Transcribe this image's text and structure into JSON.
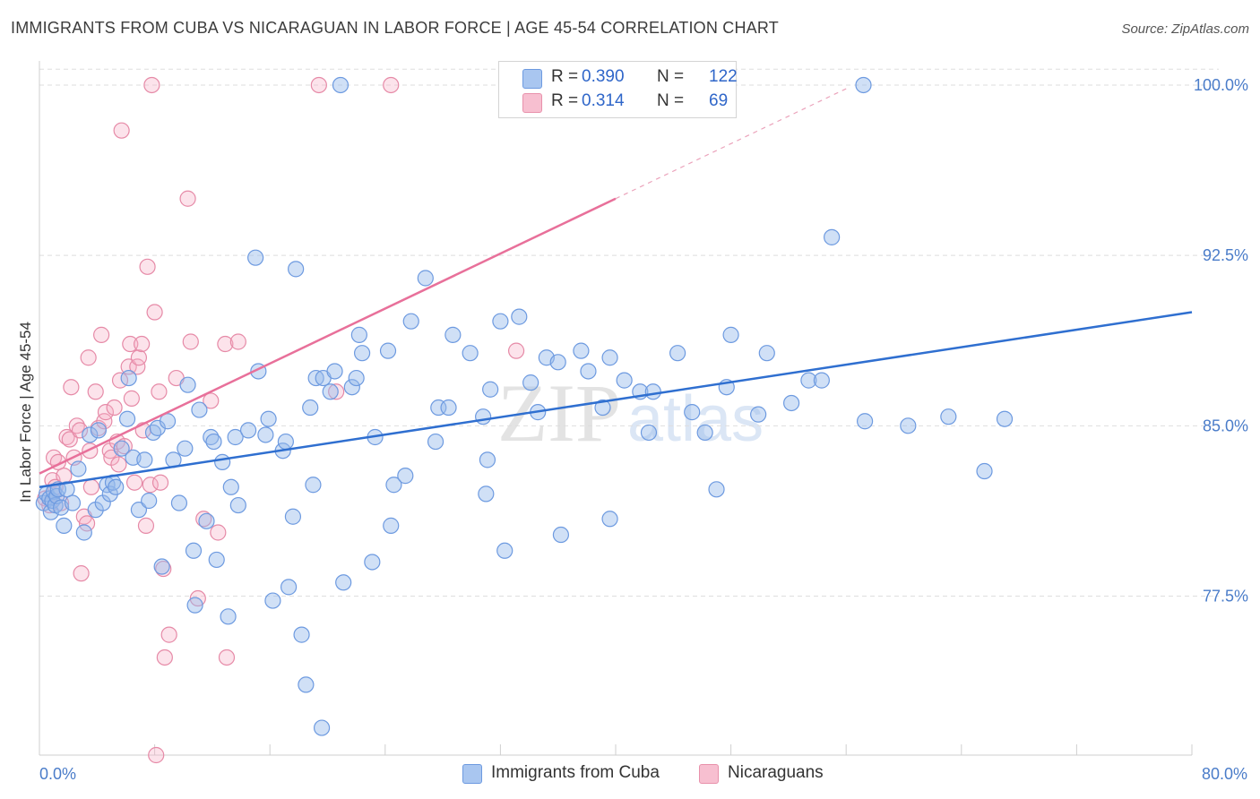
{
  "title": "IMMIGRANTS FROM CUBA VS NICARAGUAN IN LABOR FORCE | AGE 45-54 CORRELATION CHART",
  "source": "Source: ZipAtlas.com",
  "watermark": {
    "zip": "ZIP",
    "atlas": "atlas"
  },
  "legend": {
    "rows": [
      {
        "r_label": "R =",
        "r_value": "0.390",
        "n_label": "N =",
        "n_value": "122",
        "color": "#a9c6f0",
        "border": "#6d9ae0"
      },
      {
        "r_label": "R =",
        "r_value": "0.314",
        "n_label": "N =",
        "n_value": "69",
        "color": "#f7bfd0",
        "border": "#e891ab"
      }
    ]
  },
  "bottom_legend": [
    {
      "label": "Immigrants from Cuba",
      "color": "#a9c6f0",
      "border": "#6d9ae0"
    },
    {
      "label": "Nicaraguans",
      "color": "#f7bfd0",
      "border": "#e891ab"
    }
  ],
  "colors": {
    "blue_point_fill": "rgba(151,186,236,0.45)",
    "blue_point_stroke": "#6d9ae0",
    "pink_point_fill": "rgba(245,175,198,0.35)",
    "pink_point_stroke": "#e68aa7",
    "blue_line": "#2f6fd0",
    "pink_line": "#e8709a",
    "grid": "#dedede",
    "tick_label": "#4a7cc9"
  },
  "chart_data": {
    "type": "scatter",
    "title": "IMMIGRANTS FROM CUBA VS NICARAGUAN IN LABOR FORCE | AGE 45-54 CORRELATION CHART",
    "xlabel": "",
    "ylabel": "In Labor Force | Age 45-54",
    "xlim": [
      0,
      80
    ],
    "ylim": [
      70.5,
      101.3
    ],
    "x_tick_labels": [
      "0.0%",
      "80.0%"
    ],
    "y_ticks": [
      77.5,
      85.0,
      92.5,
      100.0
    ],
    "y_tick_labels": [
      "77.5%",
      "85.0%",
      "92.5%",
      "100.0%"
    ],
    "grid": "horizontal dashed",
    "legend_placement": "top-center",
    "series": [
      {
        "name": "Immigrants from Cuba",
        "trend": {
          "x": [
            0,
            80
          ],
          "y": [
            82.3,
            90.0
          ]
        },
        "points": [
          [
            0.3,
            81.6
          ],
          [
            0.5,
            82.0
          ],
          [
            0.7,
            81.8
          ],
          [
            0.8,
            81.2
          ],
          [
            0.9,
            81.7
          ],
          [
            1.0,
            82.1
          ],
          [
            1.1,
            81.5
          ],
          [
            1.2,
            81.9
          ],
          [
            1.3,
            82.2
          ],
          [
            1.5,
            81.4
          ],
          [
            1.7,
            80.6
          ],
          [
            1.9,
            82.2
          ],
          [
            2.3,
            81.6
          ],
          [
            2.7,
            83.1
          ],
          [
            3.1,
            80.3
          ],
          [
            3.5,
            84.6
          ],
          [
            3.9,
            81.3
          ],
          [
            4.1,
            84.8
          ],
          [
            4.4,
            81.6
          ],
          [
            4.7,
            82.4
          ],
          [
            4.9,
            82.0
          ],
          [
            5.1,
            82.5
          ],
          [
            5.3,
            82.3
          ],
          [
            5.7,
            84.0
          ],
          [
            6.1,
            85.3
          ],
          [
            6.2,
            87.1
          ],
          [
            6.5,
            83.6
          ],
          [
            6.9,
            81.3
          ],
          [
            7.3,
            83.5
          ],
          [
            7.6,
            81.7
          ],
          [
            7.9,
            84.7
          ],
          [
            8.2,
            84.9
          ],
          [
            8.5,
            78.8
          ],
          [
            8.9,
            85.2
          ],
          [
            9.3,
            83.5
          ],
          [
            9.7,
            81.6
          ],
          [
            10.1,
            84.0
          ],
          [
            10.3,
            86.8
          ],
          [
            10.7,
            79.5
          ],
          [
            10.8,
            77.1
          ],
          [
            11.1,
            85.7
          ],
          [
            11.6,
            80.8
          ],
          [
            11.9,
            84.5
          ],
          [
            12.1,
            84.3
          ],
          [
            12.3,
            79.1
          ],
          [
            12.7,
            83.4
          ],
          [
            13.1,
            76.6
          ],
          [
            13.3,
            82.3
          ],
          [
            13.6,
            84.5
          ],
          [
            13.8,
            81.5
          ],
          [
            14.5,
            84.8
          ],
          [
            15.0,
            92.4
          ],
          [
            15.2,
            87.4
          ],
          [
            15.7,
            84.6
          ],
          [
            15.9,
            85.3
          ],
          [
            16.2,
            77.3
          ],
          [
            16.9,
            83.9
          ],
          [
            17.1,
            84.3
          ],
          [
            17.3,
            77.9
          ],
          [
            17.6,
            81.0
          ],
          [
            17.8,
            91.9
          ],
          [
            18.2,
            75.8
          ],
          [
            18.5,
            73.6
          ],
          [
            18.8,
            85.8
          ],
          [
            19.0,
            82.4
          ],
          [
            19.2,
            87.1
          ],
          [
            19.6,
            71.7
          ],
          [
            19.7,
            87.1
          ],
          [
            20.2,
            86.5
          ],
          [
            20.5,
            87.4
          ],
          [
            20.9,
            100.0
          ],
          [
            21.1,
            78.1
          ],
          [
            21.7,
            86.7
          ],
          [
            22.0,
            87.1
          ],
          [
            22.2,
            89.0
          ],
          [
            22.4,
            88.2
          ],
          [
            23.1,
            79.0
          ],
          [
            23.3,
            84.5
          ],
          [
            24.2,
            88.3
          ],
          [
            24.4,
            80.6
          ],
          [
            24.6,
            82.4
          ],
          [
            25.4,
            82.8
          ],
          [
            25.8,
            89.6
          ],
          [
            26.8,
            91.5
          ],
          [
            27.5,
            84.3
          ],
          [
            27.7,
            85.8
          ],
          [
            28.4,
            85.8
          ],
          [
            28.7,
            89.0
          ],
          [
            29.9,
            88.2
          ],
          [
            30.8,
            85.4
          ],
          [
            31.0,
            82.0
          ],
          [
            31.1,
            83.5
          ],
          [
            31.3,
            86.6
          ],
          [
            32.0,
            89.6
          ],
          [
            32.3,
            79.5
          ],
          [
            33.3,
            89.8
          ],
          [
            34.1,
            86.9
          ],
          [
            34.6,
            85.6
          ],
          [
            35.2,
            88.0
          ],
          [
            36.0,
            87.8
          ],
          [
            36.2,
            80.2
          ],
          [
            37.6,
            88.3
          ],
          [
            38.1,
            87.4
          ],
          [
            39.1,
            85.8
          ],
          [
            39.6,
            88.0
          ],
          [
            39.6,
            80.9
          ],
          [
            40.6,
            87.0
          ],
          [
            41.7,
            86.5
          ],
          [
            42.3,
            84.7
          ],
          [
            42.6,
            86.5
          ],
          [
            44.3,
            88.2
          ],
          [
            45.3,
            85.6
          ],
          [
            46.2,
            84.7
          ],
          [
            47.0,
            82.2
          ],
          [
            47.7,
            86.7
          ],
          [
            48.0,
            89.0
          ],
          [
            49.9,
            85.5
          ],
          [
            50.5,
            88.2
          ],
          [
            52.2,
            86.0
          ],
          [
            53.4,
            87.0
          ],
          [
            54.3,
            87.0
          ],
          [
            55.0,
            93.3
          ],
          [
            57.2,
            100.0
          ],
          [
            57.3,
            85.2
          ],
          [
            60.3,
            85.0
          ],
          [
            63.1,
            85.4
          ],
          [
            65.6,
            83.0
          ],
          [
            67.0,
            85.3
          ]
        ]
      },
      {
        "name": "Nicaraguans",
        "trend": {
          "x": [
            0,
            40.0
          ],
          "y": [
            82.9,
            95.0
          ]
        },
        "points": [
          [
            0.4,
            81.8
          ],
          [
            0.7,
            81.5
          ],
          [
            0.9,
            82.6
          ],
          [
            1.0,
            83.6
          ],
          [
            1.1,
            82.3
          ],
          [
            1.3,
            83.4
          ],
          [
            1.5,
            81.6
          ],
          [
            1.7,
            82.8
          ],
          [
            1.9,
            84.5
          ],
          [
            2.1,
            84.4
          ],
          [
            2.2,
            86.7
          ],
          [
            2.4,
            83.6
          ],
          [
            2.6,
            85.0
          ],
          [
            2.8,
            84.8
          ],
          [
            2.9,
            78.5
          ],
          [
            3.1,
            81.0
          ],
          [
            3.3,
            80.7
          ],
          [
            3.4,
            88.0
          ],
          [
            3.5,
            83.9
          ],
          [
            3.6,
            82.3
          ],
          [
            3.9,
            86.5
          ],
          [
            4.1,
            84.9
          ],
          [
            4.3,
            89.0
          ],
          [
            4.5,
            85.2
          ],
          [
            4.6,
            85.6
          ],
          [
            4.9,
            83.9
          ],
          [
            5.0,
            83.6
          ],
          [
            5.2,
            85.8
          ],
          [
            5.4,
            84.3
          ],
          [
            5.5,
            83.3
          ],
          [
            5.6,
            87.0
          ],
          [
            5.7,
            98.0
          ],
          [
            5.9,
            84.1
          ],
          [
            6.2,
            87.6
          ],
          [
            6.3,
            88.6
          ],
          [
            6.4,
            86.2
          ],
          [
            6.6,
            82.5
          ],
          [
            6.8,
            87.6
          ],
          [
            6.9,
            88.0
          ],
          [
            7.1,
            88.6
          ],
          [
            7.2,
            84.8
          ],
          [
            7.4,
            80.6
          ],
          [
            7.5,
            92.0
          ],
          [
            7.7,
            82.4
          ],
          [
            7.8,
            100.0
          ],
          [
            8.0,
            90.0
          ],
          [
            8.1,
            70.5
          ],
          [
            8.3,
            86.5
          ],
          [
            8.4,
            82.5
          ],
          [
            8.6,
            78.7
          ],
          [
            8.7,
            74.8
          ],
          [
            9.0,
            75.8
          ],
          [
            9.5,
            87.1
          ],
          [
            10.3,
            95.0
          ],
          [
            10.5,
            88.7
          ],
          [
            11.0,
            77.4
          ],
          [
            11.4,
            80.9
          ],
          [
            11.9,
            86.1
          ],
          [
            12.4,
            80.3
          ],
          [
            12.9,
            88.6
          ],
          [
            13.0,
            74.8
          ],
          [
            13.8,
            88.7
          ],
          [
            19.4,
            100.0
          ],
          [
            20.6,
            86.5
          ],
          [
            24.4,
            100.0
          ],
          [
            33.1,
            88.3
          ]
        ]
      }
    ]
  }
}
